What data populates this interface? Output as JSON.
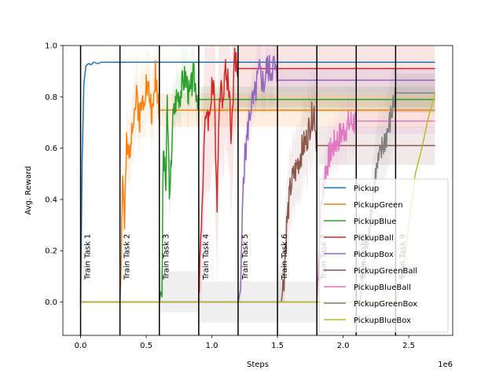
{
  "chart_data": {
    "type": "line",
    "xlabel": "Steps",
    "ylabel": "Avg. Reward",
    "x_offset_label": "1e6",
    "xlim": [
      -0.135,
      2.835
    ],
    "ylim": [
      -0.13,
      1.0
    ],
    "x_ticks": [
      0.0,
      0.5,
      1.0,
      1.5,
      2.0,
      2.5
    ],
    "x_tick_labels": [
      "0.0",
      "0.5",
      "1.0",
      "1.5",
      "2.0",
      "2.5"
    ],
    "y_ticks": [
      0.0,
      0.2,
      0.4,
      0.6,
      0.8,
      1.0
    ],
    "y_tick_labels": [
      "0.0",
      "0.2",
      "0.4",
      "0.6",
      "0.8",
      "1.0"
    ],
    "legend_position": "lower-right",
    "task_boundaries": [
      {
        "x": 0.0,
        "label": "Train Task 1"
      },
      {
        "x": 0.3,
        "label": "Train Task 2"
      },
      {
        "x": 0.6,
        "label": "Train Task 3"
      },
      {
        "x": 0.9,
        "label": "Train Task 4"
      },
      {
        "x": 1.2,
        "label": "Train Task 5"
      },
      {
        "x": 1.5,
        "label": "Train Task 6"
      },
      {
        "x": 1.8,
        "label": "Train Task 7"
      },
      {
        "x": 2.1,
        "label": "Train Task 8"
      },
      {
        "x": 2.4,
        "label": "Train Task 9"
      }
    ],
    "series": [
      {
        "name": "Pickup",
        "color": "#1f77b4",
        "start": 0.0,
        "end": 0.3,
        "seed": 1,
        "points": [
          [
            0.0,
            0.0
          ],
          [
            0.012,
            0.55
          ],
          [
            0.025,
            0.85
          ],
          [
            0.04,
            0.92
          ],
          [
            0.06,
            0.93
          ],
          [
            0.08,
            0.925
          ],
          [
            0.1,
            0.935
          ],
          [
            0.13,
            0.93
          ],
          [
            0.16,
            0.935
          ],
          [
            0.2,
            0.935
          ],
          [
            0.25,
            0.935
          ],
          [
            0.3,
            0.935
          ]
        ],
        "final": 0.935,
        "band": 0.0
      },
      {
        "name": "PickupGreen",
        "color": "#ff7f0e",
        "start": 0.3,
        "end": 0.6,
        "seed": 2,
        "points": [
          [
            0.3,
            0.0
          ],
          [
            0.31,
            0.2
          ],
          [
            0.32,
            0.5
          ],
          [
            0.335,
            0.3
          ],
          [
            0.35,
            0.6
          ],
          [
            0.37,
            0.55
          ],
          [
            0.39,
            0.7
          ],
          [
            0.41,
            0.75
          ],
          [
            0.43,
            0.8
          ],
          [
            0.45,
            0.72
          ],
          [
            0.47,
            0.78
          ],
          [
            0.5,
            0.85
          ],
          [
            0.52,
            0.82
          ],
          [
            0.55,
            0.72
          ],
          [
            0.57,
            0.9
          ],
          [
            0.6,
            0.75
          ]
        ],
        "final": 0.748,
        "band": 0.13
      },
      {
        "name": "PickupBlue",
        "color": "#2ca02c",
        "start": 0.6,
        "end": 0.9,
        "seed": 3,
        "points": [
          [
            0.6,
            0.0
          ],
          [
            0.61,
            0.04
          ],
          [
            0.62,
            0.02
          ],
          [
            0.63,
            0.6
          ],
          [
            0.65,
            0.45
          ],
          [
            0.66,
            0.78
          ],
          [
            0.68,
            0.38
          ],
          [
            0.7,
            0.7
          ],
          [
            0.73,
            0.8
          ],
          [
            0.76,
            0.82
          ],
          [
            0.78,
            0.86
          ],
          [
            0.8,
            0.88
          ],
          [
            0.83,
            0.8
          ],
          [
            0.86,
            0.88
          ],
          [
            0.9,
            0.79
          ]
        ],
        "final": 0.79,
        "band": 0.1
      },
      {
        "name": "PickupBall",
        "color": "#d62728",
        "start": 0.9,
        "end": 1.2,
        "seed": 4,
        "points": [
          [
            0.9,
            0.04
          ],
          [
            0.92,
            0.3
          ],
          [
            0.94,
            0.6
          ],
          [
            0.96,
            0.76
          ],
          [
            0.98,
            0.7
          ],
          [
            1.0,
            0.86
          ],
          [
            1.02,
            0.78
          ],
          [
            1.04,
            0.4
          ],
          [
            1.06,
            0.85
          ],
          [
            1.08,
            0.8
          ],
          [
            1.1,
            0.9
          ],
          [
            1.13,
            0.85
          ],
          [
            1.15,
            0.63
          ],
          [
            1.17,
            0.95
          ],
          [
            1.2,
            0.91
          ]
        ],
        "final": 0.91,
        "band": 0.3
      },
      {
        "name": "PickupBox",
        "color": "#9467bd",
        "start": 1.2,
        "end": 1.5,
        "seed": 5,
        "points": [
          [
            1.2,
            0.0
          ],
          [
            1.22,
            0.05
          ],
          [
            1.24,
            0.5
          ],
          [
            1.26,
            0.6
          ],
          [
            1.28,
            0.7
          ],
          [
            1.3,
            0.77
          ],
          [
            1.32,
            0.78
          ],
          [
            1.34,
            0.84
          ],
          [
            1.36,
            0.9
          ],
          [
            1.38,
            0.87
          ],
          [
            1.4,
            0.85
          ],
          [
            1.42,
            0.92
          ],
          [
            1.45,
            0.9
          ],
          [
            1.47,
            0.93
          ],
          [
            1.5,
            0.865
          ]
        ],
        "final": 0.865,
        "band": 0.1
      },
      {
        "name": "PickupGreenBall",
        "color": "#8c564b",
        "start": 1.5,
        "end": 1.8,
        "seed": 6,
        "points": [
          [
            1.5,
            0.0
          ],
          [
            1.53,
            0.0
          ],
          [
            1.55,
            0.1
          ],
          [
            1.57,
            0.3
          ],
          [
            1.6,
            0.45
          ],
          [
            1.63,
            0.5
          ],
          [
            1.66,
            0.55
          ],
          [
            1.69,
            0.6
          ],
          [
            1.72,
            0.63
          ],
          [
            1.75,
            0.7
          ],
          [
            1.78,
            0.75
          ],
          [
            1.8,
            0.61
          ]
        ],
        "final": 0.61,
        "band": 0.15
      },
      {
        "name": "PickupBlueBall",
        "color": "#e377c2",
        "start": 1.8,
        "end": 2.1,
        "seed": 7,
        "points": [
          [
            1.8,
            0.0
          ],
          [
            1.83,
            0.35
          ],
          [
            1.86,
            0.5
          ],
          [
            1.9,
            0.58
          ],
          [
            1.94,
            0.62
          ],
          [
            1.98,
            0.65
          ],
          [
            2.02,
            0.68
          ],
          [
            2.06,
            0.7
          ],
          [
            2.1,
            0.705
          ]
        ],
        "final": 0.705,
        "band": 0.1
      },
      {
        "name": "PickupGreenBox",
        "color": "#7f7f7f",
        "start": 2.1,
        "end": 2.4,
        "seed": 8,
        "points": [
          [
            2.1,
            0.0
          ],
          [
            2.13,
            0.0
          ],
          [
            2.16,
            0.15
          ],
          [
            2.2,
            0.3
          ],
          [
            2.25,
            0.5
          ],
          [
            2.3,
            0.6
          ],
          [
            2.35,
            0.68
          ],
          [
            2.4,
            0.815
          ]
        ],
        "final": 0.815,
        "band": 0.15
      },
      {
        "name": "PickupBlueBox",
        "color": "#bcbd22",
        "start": 2.4,
        "end": 2.7,
        "seed": 9,
        "points": [
          [
            2.4,
            0.0
          ],
          [
            2.45,
            0.1
          ],
          [
            2.5,
            0.3
          ],
          [
            2.55,
            0.5
          ],
          [
            2.6,
            0.6
          ],
          [
            2.65,
            0.72
          ],
          [
            2.7,
            0.81
          ]
        ],
        "final": 0.81,
        "band": 0.0
      }
    ]
  }
}
